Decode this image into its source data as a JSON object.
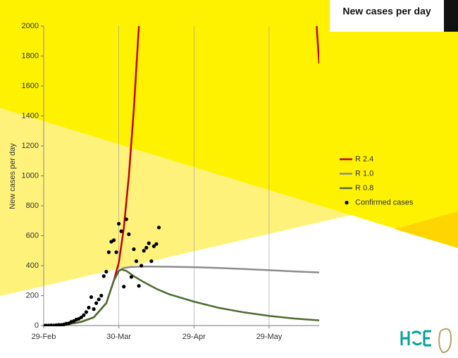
{
  "chart_data": {
    "type": "line",
    "title": "New cases per day",
    "y_label": "New cases per day",
    "xlim": [
      0,
      110
    ],
    "xticks": [
      {
        "value": 0,
        "label": "29-Feb"
      },
      {
        "value": 30,
        "label": "30-Mar"
      },
      {
        "value": 60,
        "label": "29-Apr"
      },
      {
        "value": 90,
        "label": "29-May"
      }
    ],
    "ylim": [
      0,
      2000
    ],
    "yticks": [
      0,
      200,
      400,
      600,
      800,
      1000,
      1200,
      1400,
      1600,
      1800,
      2000
    ],
    "series": [
      {
        "name": "R 2.4",
        "color": "#c00000",
        "kind": "line",
        "x": [
          0,
          5,
          10,
          15,
          20,
          25,
          28,
          30,
          32,
          34,
          36,
          38,
          80,
          109,
          110
        ],
        "values": [
          0,
          3,
          10,
          25,
          55,
          150,
          300,
          420,
          650,
          1000,
          1450,
          2000,
          null,
          2000,
          1750
        ]
      },
      {
        "name": "R 1.0",
        "color": "#8c8c8c",
        "kind": "line",
        "x": [
          0,
          5,
          10,
          15,
          20,
          25,
          28,
          30,
          32,
          35,
          40,
          50,
          60,
          70,
          80,
          90,
          100,
          110
        ],
        "values": [
          0,
          3,
          10,
          25,
          55,
          150,
          300,
          365,
          385,
          392,
          395,
          393,
          390,
          385,
          378,
          370,
          362,
          355
        ]
      },
      {
        "name": "R 0.8",
        "color": "#4e6b2e",
        "kind": "line",
        "x": [
          0,
          5,
          10,
          15,
          20,
          25,
          28,
          30,
          31,
          33,
          36,
          40,
          45,
          50,
          60,
          70,
          80,
          90,
          100,
          110
        ],
        "values": [
          0,
          3,
          10,
          25,
          55,
          150,
          300,
          365,
          375,
          365,
          330,
          290,
          245,
          210,
          160,
          118,
          88,
          65,
          47,
          35
        ]
      },
      {
        "name": "Confirmed cases",
        "color": "#000000",
        "kind": "scatter",
        "x": [
          0,
          1,
          2,
          3,
          4,
          5,
          6,
          7,
          8,
          9,
          10,
          11,
          12,
          13,
          14,
          15,
          16,
          17,
          18,
          19,
          20,
          21,
          22,
          23,
          24,
          25,
          26,
          27,
          28,
          29,
          30,
          31,
          32,
          33,
          34,
          35,
          36,
          37,
          38,
          39,
          40,
          41,
          42,
          43,
          44,
          45,
          46
        ],
        "values": [
          0,
          1,
          1,
          2,
          1,
          3,
          5,
          5,
          7,
          13,
          15,
          25,
          30,
          40,
          45,
          55,
          70,
          90,
          120,
          190,
          110,
          150,
          175,
          200,
          330,
          360,
          490,
          560,
          570,
          490,
          680,
          630,
          260,
          710,
          610,
          325,
          510,
          430,
          265,
          400,
          500,
          520,
          550,
          430,
          530,
          545,
          655
        ]
      }
    ]
  }
}
